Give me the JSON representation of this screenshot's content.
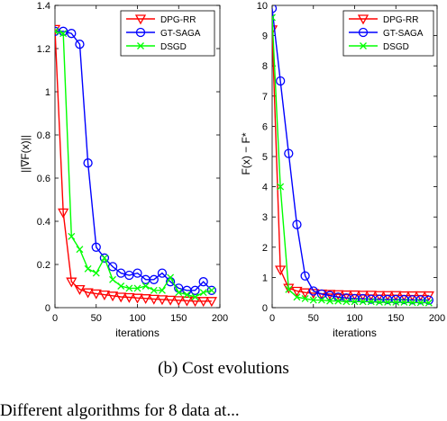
{
  "caption": "(b)  Cost evolutions",
  "bottom_text": "Different algorithms for 8 data at...",
  "colors": {
    "DPG-RR": "#ff0000",
    "GT-SAGA": "#0000ff",
    "DSGD": "#00ff00"
  },
  "chart_data": [
    {
      "type": "line",
      "title": "",
      "xlabel": "iterations",
      "ylabel": "||∇F(x)||",
      "xlim": [
        0,
        200
      ],
      "ylim": [
        0,
        1.4
      ],
      "xticks": [
        "0",
        "50",
        "100",
        "150",
        "200"
      ],
      "yticks": [
        "0",
        "0.2",
        "0.4",
        "0.6",
        "0.8",
        "1",
        "1.2",
        "1.4"
      ],
      "legend": {
        "position": "top-right",
        "entries": [
          "DPG-RR",
          "GT-SAGA",
          "DSGD"
        ]
      },
      "x": [
        0,
        10,
        20,
        30,
        40,
        50,
        60,
        70,
        80,
        90,
        100,
        110,
        120,
        130,
        140,
        150,
        160,
        170,
        180,
        190
      ],
      "series": [
        {
          "name": "DPG-RR",
          "marker": "triangle-down",
          "values": [
            1.29,
            0.44,
            0.12,
            0.085,
            0.07,
            0.065,
            0.06,
            0.055,
            0.05,
            0.048,
            0.045,
            0.043,
            0.04,
            0.038,
            0.036,
            0.034,
            0.032,
            0.03,
            0.03,
            0.03
          ]
        },
        {
          "name": "GT-SAGA",
          "marker": "circle",
          "values": [
            1.28,
            1.28,
            1.27,
            1.22,
            0.67,
            0.28,
            0.23,
            0.19,
            0.16,
            0.15,
            0.16,
            0.13,
            0.13,
            0.16,
            0.12,
            0.09,
            0.08,
            0.08,
            0.12,
            0.08
          ]
        },
        {
          "name": "DSGD",
          "marker": "x",
          "values": [
            1.28,
            1.27,
            0.33,
            0.27,
            0.18,
            0.16,
            0.23,
            0.13,
            0.1,
            0.09,
            0.09,
            0.1,
            0.08,
            0.08,
            0.14,
            0.07,
            0.06,
            0.05,
            0.07,
            0.08
          ]
        }
      ]
    },
    {
      "type": "line",
      "title": "",
      "xlabel": "iterations",
      "ylabel": "F(x) − F*",
      "xlim": [
        0,
        200
      ],
      "ylim": [
        0,
        10
      ],
      "xticks": [
        "0",
        "50",
        "100",
        "150",
        "200"
      ],
      "yticks": [
        "0",
        "1",
        "2",
        "3",
        "4",
        "5",
        "6",
        "7",
        "8",
        "9",
        "10"
      ],
      "legend": {
        "position": "top-right",
        "entries": [
          "DPG-RR",
          "GT-SAGA",
          "DSGD"
        ]
      },
      "x": [
        0,
        10,
        20,
        30,
        40,
        50,
        60,
        70,
        80,
        90,
        100,
        110,
        120,
        130,
        140,
        150,
        160,
        170,
        180,
        190
      ],
      "series": [
        {
          "name": "DPG-RR",
          "marker": "triangle-down",
          "values": [
            9.2,
            1.25,
            0.65,
            0.55,
            0.5,
            0.48,
            0.46,
            0.45,
            0.44,
            0.43,
            0.43,
            0.42,
            0.42,
            0.41,
            0.41,
            0.41,
            0.4,
            0.4,
            0.4,
            0.4
          ]
        },
        {
          "name": "GT-SAGA",
          "marker": "circle",
          "values": [
            9.9,
            7.5,
            5.1,
            2.75,
            1.05,
            0.55,
            0.45,
            0.4,
            0.35,
            0.32,
            0.3,
            0.3,
            0.28,
            0.28,
            0.27,
            0.27,
            0.27,
            0.26,
            0.26,
            0.25
          ]
        },
        {
          "name": "DSGD",
          "marker": "x",
          "values": [
            9.6,
            4.0,
            0.6,
            0.35,
            0.3,
            0.25,
            0.25,
            0.22,
            0.22,
            0.2,
            0.2,
            0.2,
            0.2,
            0.18,
            0.18,
            0.18,
            0.18,
            0.17,
            0.17,
            0.16
          ]
        }
      ]
    }
  ]
}
